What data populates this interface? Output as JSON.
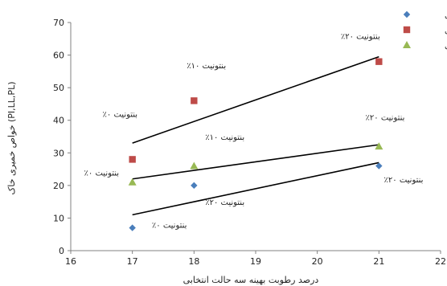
{
  "chart_data": {
    "type": "scatter",
    "xlabel": "درصد رطوبت بهینه سه حالت انتخابی",
    "ylabel": "خواص خمیری خاک (PI,LL,PL)",
    "xlim": [
      16,
      22
    ],
    "ylim": [
      0,
      70
    ],
    "xticks": [
      "16",
      "17",
      "18",
      "19",
      "20",
      "21",
      "22"
    ],
    "yticks": [
      "0",
      "10",
      "20",
      "30",
      "40",
      "50",
      "60",
      "70"
    ],
    "grid": false,
    "legend_position": "top-right",
    "series": [
      {
        "name": "شاخص خمیری",
        "marker": "diamond",
        "color": "#4a7ebb",
        "points": [
          [
            17,
            7
          ],
          [
            18,
            20
          ],
          [
            21,
            26
          ]
        ],
        "trend": [
          [
            17,
            11
          ],
          [
            21,
            27
          ]
        ]
      },
      {
        "name": "حد روانی",
        "marker": "square",
        "color": "#be4b48",
        "points": [
          [
            17,
            28
          ],
          [
            18,
            46
          ],
          [
            21,
            58
          ]
        ],
        "trend": [
          [
            17,
            33
          ],
          [
            21,
            59.5
          ]
        ]
      },
      {
        "name": "حد خمیری",
        "marker": "triangle",
        "color": "#98b954",
        "points": [
          [
            17,
            21
          ],
          [
            18,
            26
          ],
          [
            21,
            32
          ]
        ],
        "trend": [
          [
            17,
            22
          ],
          [
            21,
            32.5
          ]
        ]
      }
    ],
    "annotations": [
      {
        "text": "بنتونیت ۲۰٪",
        "x": 20.7,
        "y": 65
      },
      {
        "text": "بنتونیت ۱۰٪",
        "x": 18.2,
        "y": 56
      },
      {
        "text": "بنتونیت ۰٪",
        "x": 16.8,
        "y": 41
      },
      {
        "text": "بنتونیت ۱۰٪",
        "x": 18.5,
        "y": 34
      },
      {
        "text": "بنتونیت ۲۰٪",
        "x": 21.1,
        "y": 40
      },
      {
        "text": "بنتونیت ۰٪",
        "x": 16.5,
        "y": 23
      },
      {
        "text": "بنتونیت ۲۰٪",
        "x": 18.5,
        "y": 14
      },
      {
        "text": "بنتونیت ۲۰٪",
        "x": 21.4,
        "y": 21
      },
      {
        "text": "بنتونیت ۰٪",
        "x": 17.6,
        "y": 7
      }
    ]
  }
}
